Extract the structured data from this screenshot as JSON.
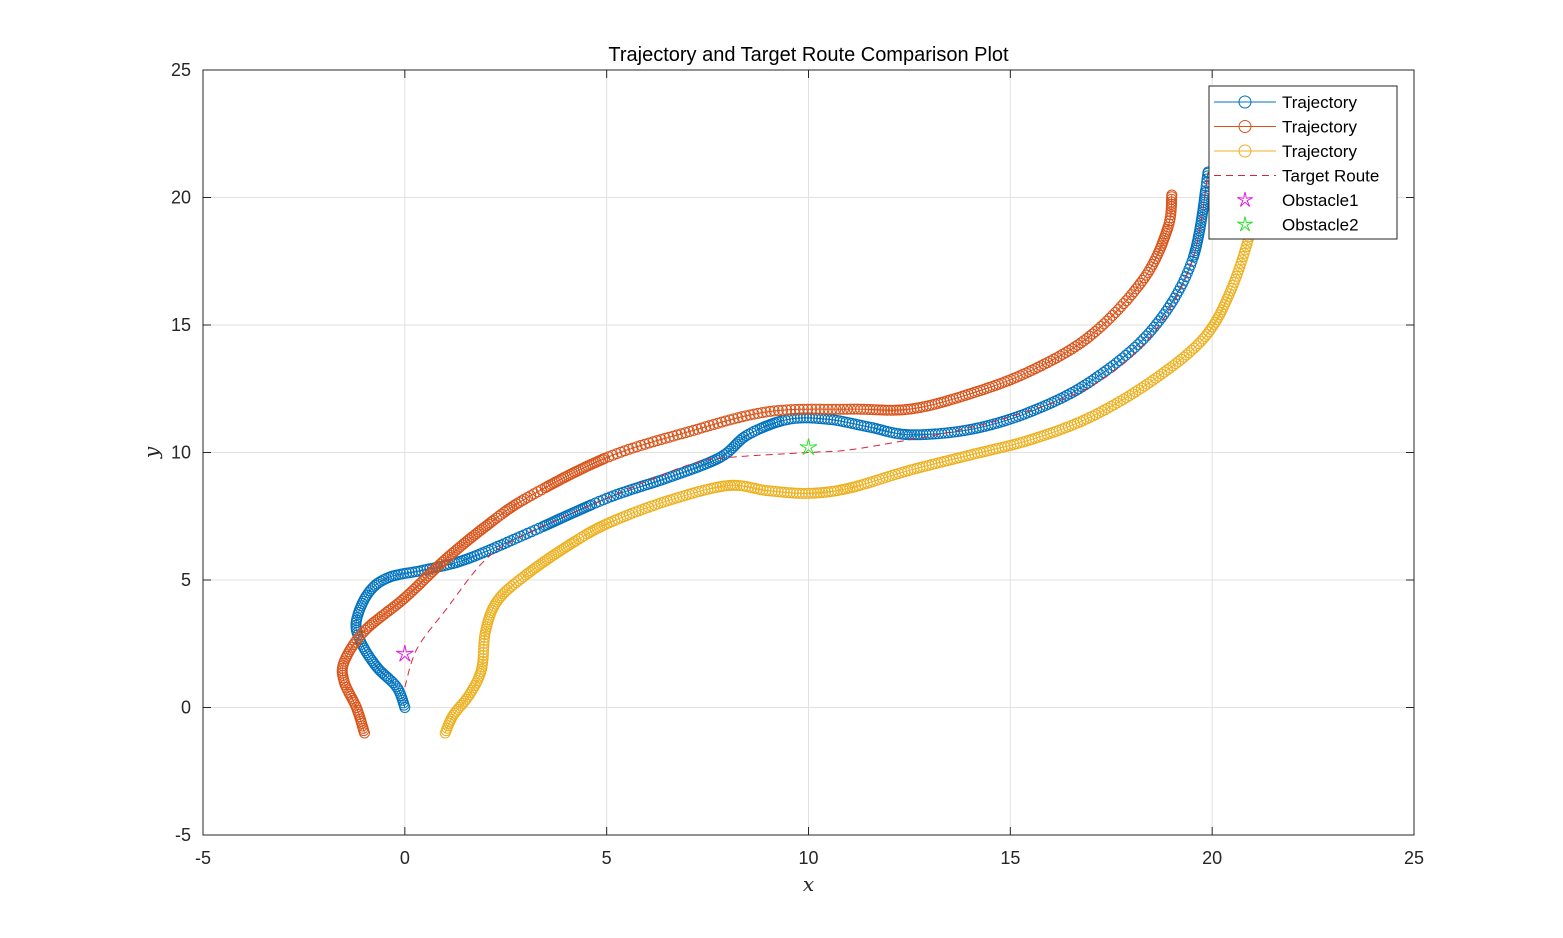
{
  "chart_data": {
    "type": "line",
    "title": "Trajectory and Target Route Comparison Plot",
    "xlabel": "x",
    "ylabel": "y",
    "xlim": [
      -5,
      25
    ],
    "ylim": [
      -5,
      25
    ],
    "xticks": [
      -5,
      0,
      5,
      10,
      15,
      20,
      25
    ],
    "yticks": [
      -5,
      0,
      5,
      10,
      15,
      20,
      25
    ],
    "grid": true,
    "legend_position": "top-right",
    "series": [
      {
        "name": "Trajectory",
        "color": "#0072BD",
        "marker": "circle",
        "points": [
          [
            0,
            0
          ],
          [
            -0.2,
            0.8
          ],
          [
            -0.7,
            1.6
          ],
          [
            -1.1,
            2.6
          ],
          [
            -1.2,
            3.4
          ],
          [
            -0.9,
            4.5
          ],
          [
            -0.4,
            5.1
          ],
          [
            0.5,
            5.4
          ],
          [
            1.5,
            5.8
          ],
          [
            3,
            6.8
          ],
          [
            5,
            8.2
          ],
          [
            6.5,
            9
          ],
          [
            7.8,
            9.8
          ],
          [
            8.5,
            10.7
          ],
          [
            9.5,
            11.3
          ],
          [
            10.5,
            11.3
          ],
          [
            11.5,
            11
          ],
          [
            12.5,
            10.7
          ],
          [
            14,
            10.9
          ],
          [
            15.5,
            11.6
          ],
          [
            17,
            12.8
          ],
          [
            18.5,
            14.8
          ],
          [
            19.5,
            17.5
          ],
          [
            19.9,
            21
          ]
        ]
      },
      {
        "name": "Trajectory",
        "color": "#D95319",
        "marker": "circle",
        "points": [
          [
            -1,
            -1
          ],
          [
            -1.2,
            0
          ],
          [
            -1.5,
            1
          ],
          [
            -1.5,
            1.8
          ],
          [
            -1,
            3
          ],
          [
            0,
            4.3
          ],
          [
            1,
            5.8
          ],
          [
            2,
            7.1
          ],
          [
            3,
            8.2
          ],
          [
            5,
            9.8
          ],
          [
            7,
            10.8
          ],
          [
            9,
            11.6
          ],
          [
            11,
            11.7
          ],
          [
            12.5,
            11.7
          ],
          [
            14,
            12.3
          ],
          [
            15.5,
            13.2
          ],
          [
            17,
            14.6
          ],
          [
            18.3,
            16.8
          ],
          [
            18.9,
            18.8
          ],
          [
            19,
            20.1
          ]
        ]
      },
      {
        "name": "Trajectory",
        "color": "#EDB120",
        "marker": "circle",
        "points": [
          [
            1,
            -1
          ],
          [
            1.2,
            -0.3
          ],
          [
            1.6,
            0.5
          ],
          [
            1.9,
            1.5
          ],
          [
            2,
            3
          ],
          [
            2.3,
            4.2
          ],
          [
            3,
            5.2
          ],
          [
            4,
            6.3
          ],
          [
            5,
            7.2
          ],
          [
            6.5,
            8.1
          ],
          [
            8,
            8.7
          ],
          [
            9,
            8.5
          ],
          [
            10,
            8.4
          ],
          [
            11,
            8.6
          ],
          [
            12.5,
            9.3
          ],
          [
            14,
            9.9
          ],
          [
            15.5,
            10.5
          ],
          [
            17,
            11.4
          ],
          [
            18.5,
            12.8
          ],
          [
            19.8,
            14.5
          ],
          [
            20.5,
            16.5
          ],
          [
            21,
            19
          ],
          [
            21.2,
            21
          ]
        ]
      },
      {
        "name": "Target Route",
        "color": "#D8253A",
        "marker": "none",
        "dashed": true,
        "points": [
          [
            0,
            0.8
          ],
          [
            0.3,
            2.3
          ],
          [
            1,
            3.8
          ],
          [
            2,
            5.8
          ],
          [
            3,
            6.8
          ],
          [
            5,
            8.2
          ],
          [
            7,
            9.5
          ],
          [
            8,
            9.8
          ],
          [
            10,
            10
          ],
          [
            11,
            10.1
          ],
          [
            12.5,
            10.5
          ],
          [
            13.5,
            10.8
          ],
          [
            15,
            11.4
          ],
          [
            17,
            12.6
          ],
          [
            18.5,
            14.6
          ],
          [
            19.5,
            17.5
          ],
          [
            19.9,
            21
          ]
        ]
      },
      {
        "name": "Obstacle1",
        "color": "#E020E0",
        "marker": "star",
        "points": [
          [
            0,
            2.1
          ]
        ]
      },
      {
        "name": "Obstacle2",
        "color": "#30E030",
        "marker": "star",
        "points": [
          [
            10,
            10.2
          ]
        ]
      }
    ]
  }
}
